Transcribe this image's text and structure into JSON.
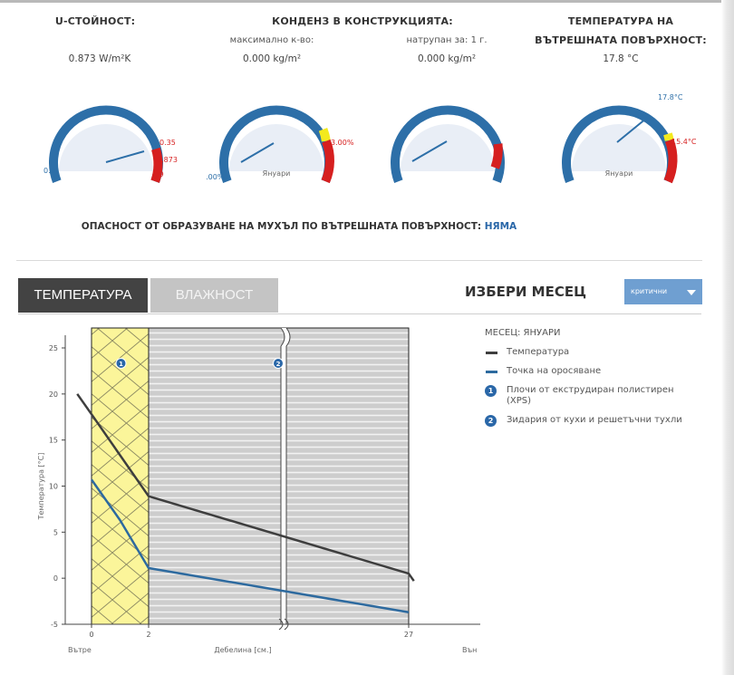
{
  "stats": {
    "u_value": {
      "heading": "U-СТОЙНОСТ:",
      "value": "0.873 W/m²K"
    },
    "condensation": {
      "heading": "КОНДЕНЗ В КОНСТРУКЦИЯТА:",
      "max_label": "максимално к-во:",
      "max_value": "0.000 kg/m²",
      "accum_label": "натрупан за: 1 г.",
      "accum_value": "0.000 kg/m²"
    },
    "surface_temp": {
      "heading_line1": "ТЕМПЕРАТУРА НА",
      "heading_line2": "ВЪТРЕШНАТА ПОВЪРХНОСТ:",
      "value": "17.8 °C"
    }
  },
  "gauges": {
    "g1": {
      "min": "0.0",
      "tick1": "0.35",
      "tick2": "0.873",
      "tick3": "1.9",
      "value": 0.873
    },
    "g2": {
      "min": "0.00%",
      "tick": "3.00%",
      "center": "Януари",
      "value": 0
    },
    "g3": {
      "min": "0",
      "value": 0
    },
    "g4": {
      "top": "17.8°C",
      "tick": "15.4°C",
      "center": "Януари",
      "value": 17.8
    }
  },
  "mold": {
    "label": "ОПАСНОСТ ОТ ОБРАЗУВАНЕ НА МУХЪЛ ПО ВЪТРЕШНАТА ПОВЪРХНОСТ:",
    "status": "НЯМА"
  },
  "tabs": {
    "temperature": "ТЕМПЕРАТУРА",
    "humidity": "ВЛАЖНОСТ"
  },
  "month_select": {
    "label": "ИЗБЕРИ МЕСЕЦ",
    "value": "критични"
  },
  "legend": {
    "month": "МЕСЕЦ: ЯНУАРИ",
    "temperature": "Температура",
    "dew_point": "Точка на оросяване",
    "layer1": "Плочи от екструдиран полистирен (XPS)",
    "layer2": "Зидария от кухи и решетъчни тухли"
  },
  "colors": {
    "temperature": "#3e3e3e",
    "dew_point": "#2d6a9f",
    "gauge_blue": "#2d6fa8",
    "danger": "#d61f1f",
    "warning": "#f3ea1e",
    "insulation": "#fbf59a",
    "brick": "#cfcfcf"
  },
  "chart_data": {
    "type": "line",
    "xlabel": "Дебелина [см.]",
    "ylabel": "Температура [°C]",
    "x_left_label": "Вътре",
    "x_right_label": "Вън",
    "ylim": [
      -5,
      27
    ],
    "y_ticks": [
      -5,
      0,
      5,
      10,
      15,
      20,
      25
    ],
    "x_ticks": [
      0,
      2,
      27
    ],
    "layers": [
      {
        "id": "1",
        "name": "Плочи от екструдиран полистирен (XPS)",
        "from": 0,
        "to": 2
      },
      {
        "id": "2",
        "name": "Зидария от кухи и решетъчни тухли",
        "from": 2,
        "to": 27
      }
    ],
    "series": [
      {
        "name": "Температура",
        "points": [
          [
            -0.5,
            20.0
          ],
          [
            0,
            17.8
          ],
          [
            2,
            8.9
          ],
          [
            27,
            0.5
          ],
          [
            27.5,
            -0.3
          ]
        ]
      },
      {
        "name": "Точка на оросяване",
        "points": [
          [
            0,
            10.7
          ],
          [
            1,
            6.3
          ],
          [
            2,
            1.1
          ],
          [
            27,
            -3.7
          ]
        ]
      }
    ]
  }
}
